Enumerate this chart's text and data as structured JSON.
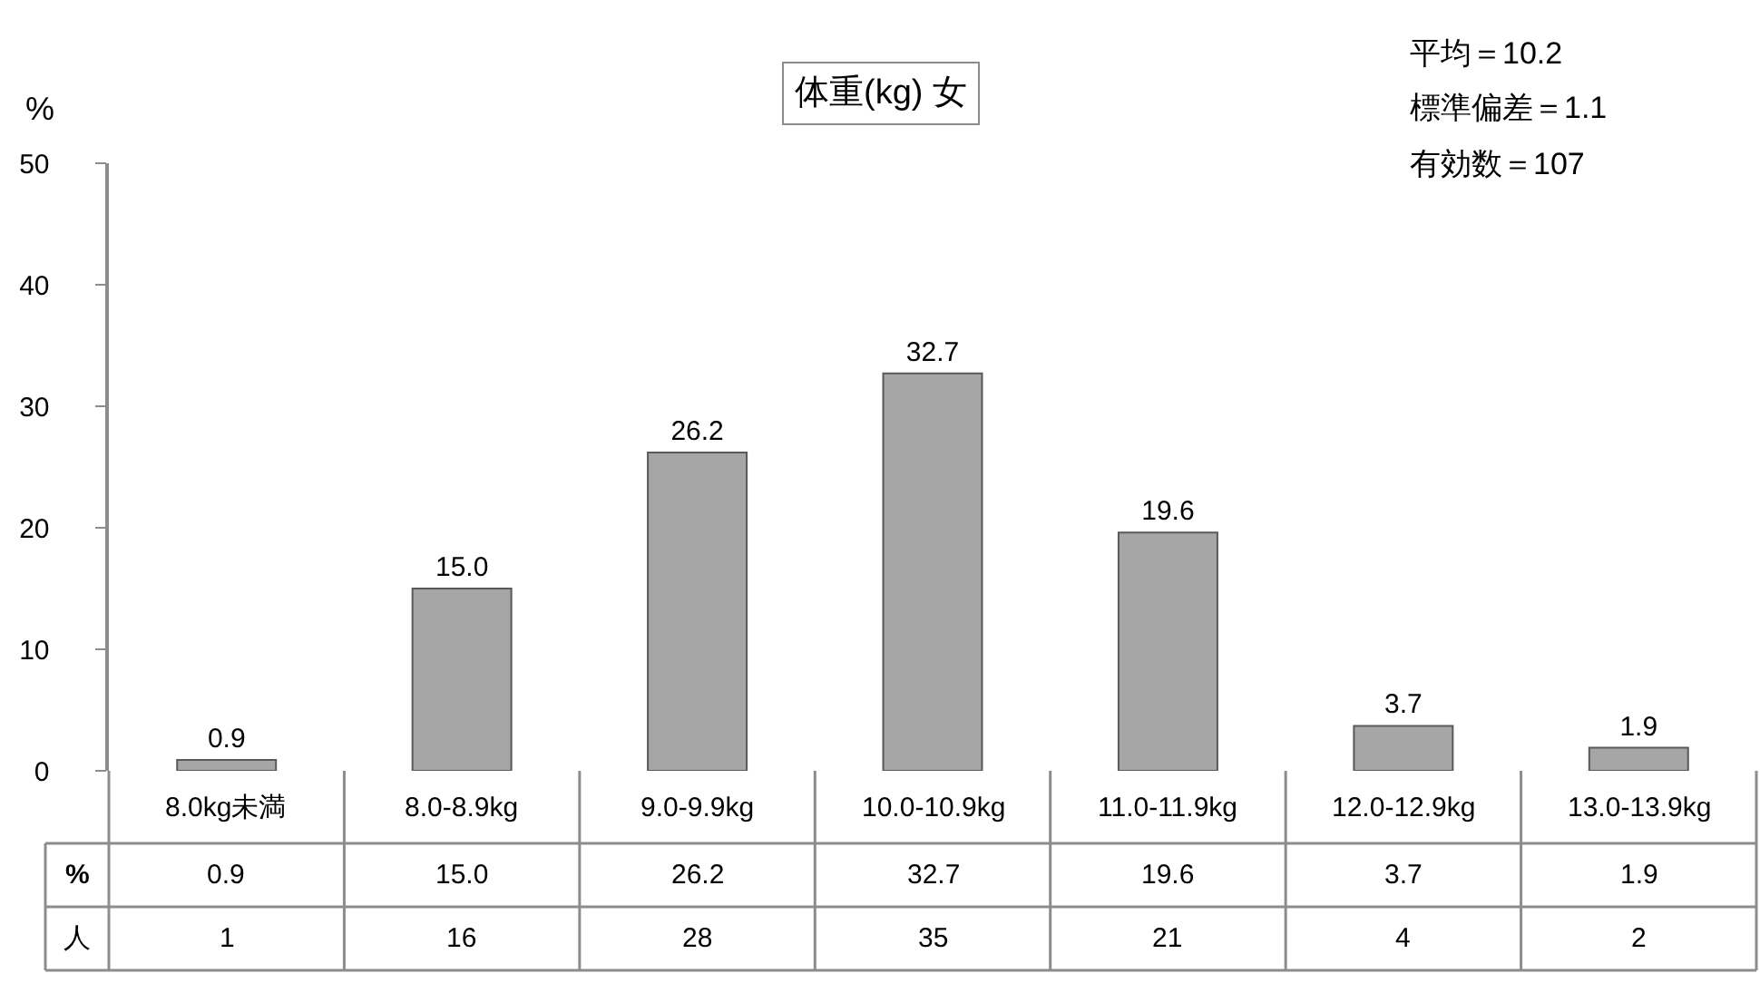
{
  "chart_data": {
    "type": "bar",
    "title": "体重(kg) 女",
    "ylabel": "%",
    "categories": [
      "8.0kg未満",
      "8.0-8.9kg",
      "9.0-9.9kg",
      "10.0-10.9kg",
      "11.0-11.9kg",
      "12.0-12.9kg",
      "13.0-13.9kg"
    ],
    "series": [
      {
        "name": "%",
        "color": "#a6a6a6",
        "values": [
          0.9,
          15.0,
          26.2,
          32.7,
          19.6,
          3.7,
          1.9
        ]
      }
    ],
    "value_labels": [
      "0.9",
      "15.0",
      "26.2",
      "32.7",
      "19.6",
      "3.7",
      "1.9"
    ],
    "ylim": [
      0,
      50
    ],
    "yticks": [
      0,
      10,
      20,
      30,
      40,
      50
    ],
    "grid": false,
    "legend": false,
    "annotations": [
      "平均＝10.2",
      "標準偏差＝1.1",
      "有効数＝107",
      "0.9",
      "15.0",
      "26.2",
      "32.7",
      "19.6",
      "3.7",
      "1.9",
      "人",
      "1",
      "16",
      "28",
      "35",
      "21",
      "4",
      "2"
    ]
  }
}
